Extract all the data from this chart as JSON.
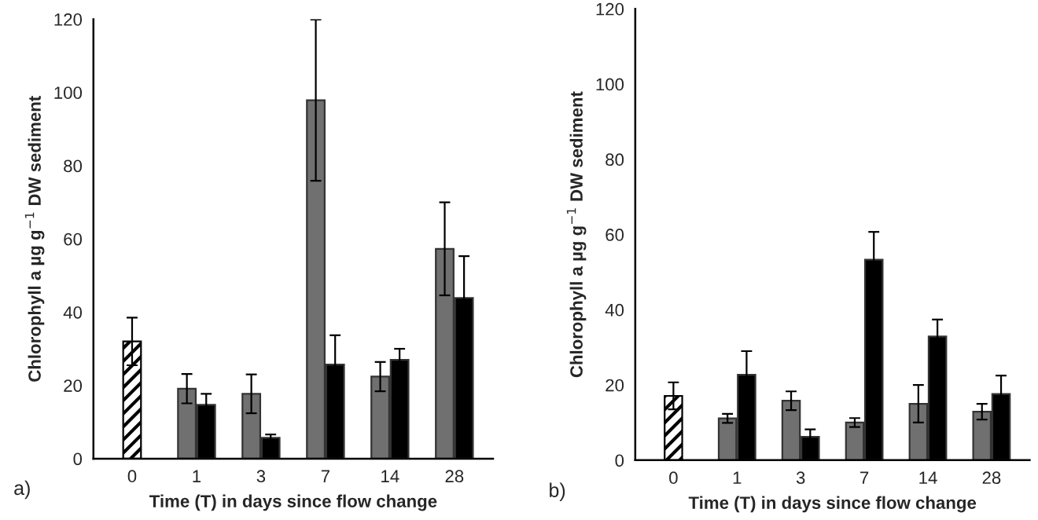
{
  "chart_data": [
    {
      "type": "bar",
      "categories": [
        "0",
        "1",
        "3",
        "7",
        "14",
        "28"
      ],
      "xlabel": "Time (T) in days since flow change",
      "ylabel": "Chlorophyll a µg g$^{−1}$ DW sediment",
      "ylim": [
        0,
        120
      ],
      "yticks": [
        0,
        20,
        40,
        60,
        80,
        100,
        120
      ],
      "grid": false,
      "legend": false,
      "annotations": [
        "a)"
      ],
      "series": [
        {
          "color": "#000000",
          "values": [
            32,
            null,
            null,
            null,
            null,
            null
          ],
          "errors": [
            6.5,
            null,
            null,
            null,
            null,
            null
          ]
        },
        {
          "color": "#707070",
          "values": [
            null,
            19.1,
            17.7,
            97.9,
            22.4,
            57.3
          ],
          "errors": [
            null,
            4,
            5.3,
            22,
            4,
            12.7
          ]
        },
        {
          "color": "#000000",
          "values": [
            null,
            14.7,
            5.7,
            25.7,
            27,
            43.9
          ],
          "errors": [
            null,
            3,
            0.9,
            8,
            3,
            11.4
          ]
        }
      ]
    },
    {
      "type": "bar",
      "categories": [
        "0",
        "1",
        "3",
        "7",
        "14",
        "28"
      ],
      "xlabel": "Time (T) in days since flow change",
      "ylabel": "Chlorophyll a µg g$^{−1}$ DW sediment",
      "ylim": [
        0,
        120
      ],
      "yticks": [
        0,
        20,
        40,
        60,
        80,
        100,
        120
      ],
      "grid": false,
      "legend": false,
      "annotations": [
        "b)"
      ],
      "series": [
        {
          "color": "#000000",
          "values": [
            17.1,
            null,
            null,
            null,
            null,
            null
          ],
          "errors": [
            3.6,
            null,
            null,
            null,
            null,
            null
          ]
        },
        {
          "color": "#707070",
          "values": [
            null,
            11.1,
            15.8,
            10,
            15,
            12.9
          ],
          "errors": [
            null,
            1.2,
            2.5,
            1.2,
            5,
            2.1
          ]
        },
        {
          "color": "#000000",
          "values": [
            null,
            22.7,
            6.2,
            53.3,
            32.9,
            17.6
          ],
          "errors": [
            null,
            6.3,
            2,
            7.4,
            4.5,
            4.9
          ]
        }
      ]
    }
  ]
}
